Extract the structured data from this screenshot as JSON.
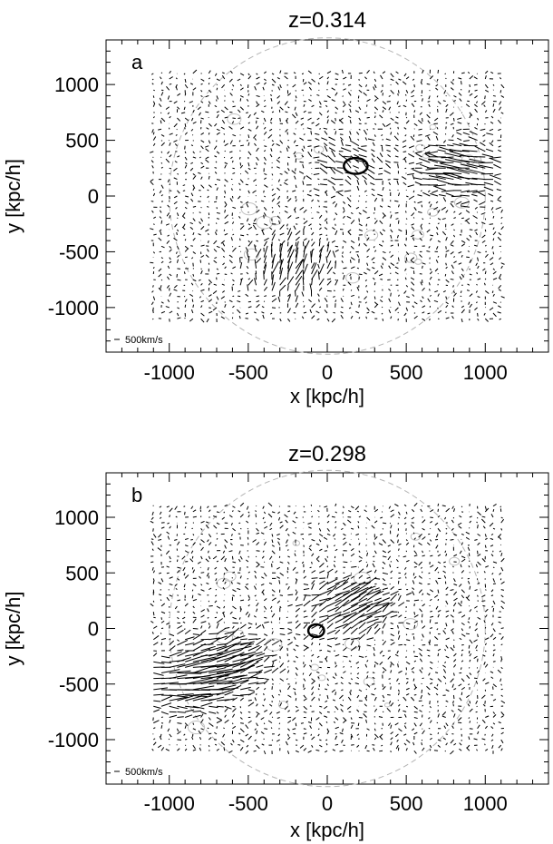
{
  "chart_data": [
    {
      "type": "quiver",
      "panel": "a",
      "title": "z=0.314",
      "xlabel": "x [kpc/h]",
      "ylabel": "y [kpc/h]",
      "xlim": [
        -1400,
        1400
      ],
      "ylim": [
        -1400,
        1400
      ],
      "xticks": [
        -1000,
        -500,
        0,
        500,
        1000
      ],
      "xtick_labels": [
        "-1000",
        "-500",
        "0",
        "500",
        "1000"
      ],
      "yticks": [
        -1000,
        -500,
        0,
        500,
        1000
      ],
      "ytick_labels": [
        "-1000",
        "-500",
        "0",
        "500",
        "1000"
      ],
      "scale_label": "500km/s",
      "field_extent": {
        "x": [
          -1100,
          1100
        ],
        "y": [
          -1100,
          1100
        ]
      },
      "highlighted_ellipse": {
        "x": 180,
        "y": 270,
        "rx": 75,
        "ry": 50
      },
      "notable_flows": [
        {
          "x": 880,
          "y": 240,
          "vx": -600,
          "vy": 80
        },
        {
          "x": -250,
          "y": -650,
          "vx": 120,
          "vy": 380
        },
        {
          "x": 150,
          "y": 280,
          "vx": -250,
          "vy": 120
        }
      ]
    },
    {
      "type": "quiver",
      "panel": "b",
      "title": "z=0.298",
      "xlabel": "x [kpc/h]",
      "ylabel": "y [kpc/h]",
      "xlim": [
        -1400,
        1400
      ],
      "ylim": [
        -1400,
        1400
      ],
      "xticks": [
        -1000,
        -500,
        0,
        500,
        1000
      ],
      "xtick_labels": [
        "-1000",
        "-500",
        "0",
        "500",
        "1000"
      ],
      "yticks": [
        -1000,
        -500,
        0,
        500,
        1000
      ],
      "ytick_labels": [
        "-1000",
        "-500",
        "0",
        "500",
        "1000"
      ],
      "scale_label": "500km/s",
      "field_extent": {
        "x": [
          -1100,
          1100
        ],
        "y": [
          -1100,
          1100
        ]
      },
      "highlighted_ellipse": {
        "x": -70,
        "y": -20,
        "rx": 50,
        "ry": 40
      },
      "notable_flows": [
        {
          "x": -900,
          "y": -500,
          "vx": 650,
          "vy": 50
        },
        {
          "x": -650,
          "y": -300,
          "vx": 500,
          "vy": 200
        },
        {
          "x": 120,
          "y": 180,
          "vx": 520,
          "vy": 280
        }
      ]
    }
  ]
}
